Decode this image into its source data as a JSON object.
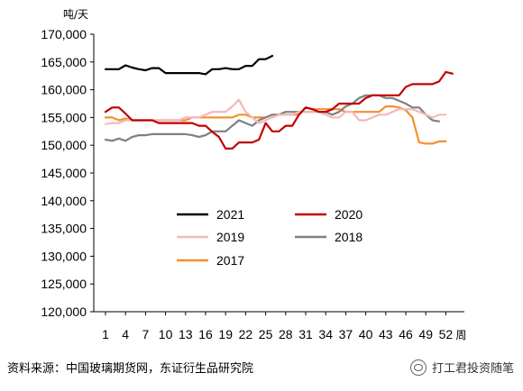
{
  "chart_data": {
    "type": "line",
    "y_unit_label": "吨/天",
    "x_unit_label": "周",
    "ylim": [
      120000,
      170000
    ],
    "y_ticks": [
      "170,000",
      "165,000",
      "160,000",
      "155,000",
      "150,000",
      "145,000",
      "140,000",
      "135,000",
      "130,000",
      "125,000",
      "120,000"
    ],
    "x_ticks": [
      "1",
      "4",
      "7",
      "10",
      "13",
      "16",
      "19",
      "22",
      "25",
      "28",
      "31",
      "34",
      "37",
      "40",
      "43",
      "46",
      "49",
      "52"
    ],
    "grid": false,
    "legend_placement": "inside-bottom-center",
    "series": [
      {
        "name": "2021",
        "color": "#000000",
        "values": [
          163700,
          163700,
          163700,
          164400,
          164000,
          163700,
          163500,
          163900,
          163900,
          163000,
          163000,
          163000,
          163000,
          163000,
          163000,
          162800,
          163700,
          163700,
          163900,
          163700,
          163700,
          164300,
          164300,
          165500,
          165500,
          166100
        ]
      },
      {
        "name": "2020",
        "color": "#c00000",
        "values": [
          156000,
          156800,
          156800,
          155700,
          154500,
          154500,
          154500,
          154500,
          154000,
          154000,
          154000,
          154000,
          154000,
          154000,
          153500,
          153500,
          152400,
          151500,
          149400,
          149400,
          150500,
          150500,
          150500,
          151000,
          154000,
          152500,
          152500,
          153500,
          153500,
          155500,
          156800,
          156500,
          156000,
          156000,
          156500,
          157500,
          157500,
          157500,
          157500,
          158500,
          159000,
          159000,
          159000,
          159000,
          159000,
          160500,
          161000,
          161000,
          161000,
          161000,
          161500,
          163200,
          162900
        ]
      },
      {
        "name": "2019",
        "color": "#f4b8b8",
        "values": [
          153800,
          154000,
          154000,
          154500,
          154500,
          154500,
          154500,
          154500,
          154500,
          154500,
          154500,
          154500,
          155000,
          155000,
          155000,
          155500,
          156000,
          156000,
          156000,
          157000,
          158200,
          156000,
          155000,
          154000,
          154500,
          155000,
          155500,
          155500,
          155500,
          156000,
          156000,
          156000,
          156000,
          155500,
          155000,
          155000,
          156000,
          156000,
          154500,
          154500,
          155000,
          155500,
          155500,
          156000,
          156500,
          156500,
          156500,
          156000,
          155500,
          155000,
          155500,
          155500
        ]
      },
      {
        "name": "2018",
        "color": "#808080",
        "values": [
          151000,
          150800,
          151200,
          150800,
          151500,
          151800,
          151800,
          152000,
          152000,
          152000,
          152000,
          152000,
          152000,
          151800,
          151500,
          151800,
          152500,
          152500,
          152500,
          153500,
          154500,
          154000,
          153500,
          154500,
          155000,
          155500,
          155500,
          156000,
          156000,
          156000,
          156000,
          156000,
          156000,
          156000,
          155500,
          156000,
          157000,
          157500,
          158500,
          159000,
          159000,
          159000,
          158500,
          158500,
          158000,
          157500,
          156800,
          156800,
          155500,
          154500,
          154300
        ]
      },
      {
        "name": "2017",
        "color": "#f4902c",
        "values": [
          155000,
          155000,
          154500,
          154800,
          154500,
          154500,
          154500,
          154500,
          154500,
          154500,
          154500,
          154500,
          154500,
          155000,
          155000,
          155000,
          155000,
          155000,
          155000,
          155000,
          155500,
          155500,
          155000,
          155000,
          155000,
          155500,
          155500,
          155500,
          155500,
          155500,
          156800,
          156500,
          156500,
          156500,
          156500,
          156500,
          156000,
          156000,
          156000,
          156000,
          156000,
          156000,
          157000,
          157000,
          156800,
          156300,
          155000,
          150500,
          150300,
          150300,
          150700,
          150700
        ]
      }
    ]
  },
  "footer": {
    "source": "资料来源：中国玻璃期货网，东证衍生品研究院",
    "watermark": "打工君投资随笔"
  }
}
